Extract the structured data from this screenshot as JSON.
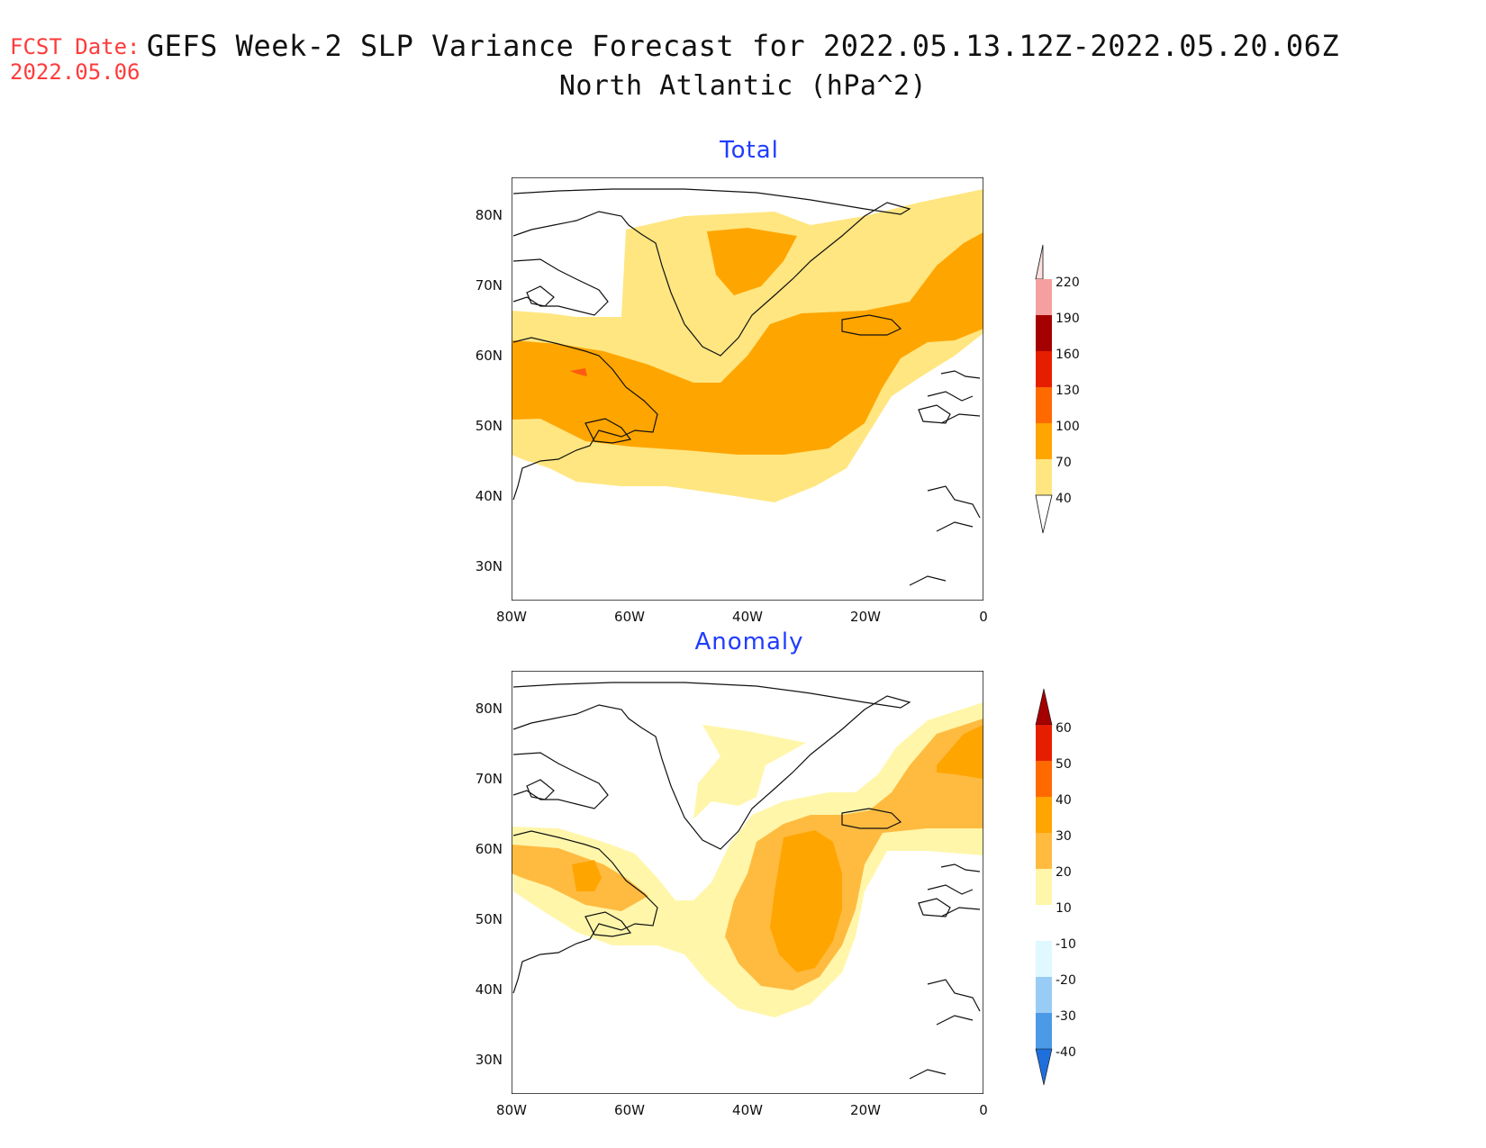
{
  "forecast_date": {
    "label": "FCST Date:",
    "value": "2022.05.06"
  },
  "title": "GEFS Week-2 SLP Variance Forecast for 2022.05.13.12Z-2022.05.20.06Z",
  "subtitle": "North Atlantic (hPa^2)",
  "axes": {
    "lat_ticks": [
      "80N",
      "70N",
      "60N",
      "50N",
      "40N",
      "30N"
    ],
    "lon_ticks": [
      "80W",
      "60W",
      "40W",
      "20W",
      "0"
    ]
  },
  "panels": [
    {
      "title": "Total",
      "colorbar": {
        "labels": [
          "40",
          "70",
          "100",
          "130",
          "160",
          "190",
          "220"
        ],
        "colors": [
          "#ffe680",
          "#ffa500",
          "#ff6a00",
          "#e61e00",
          "#a50000",
          "#f5a0a0",
          "#ffe0e0"
        ]
      }
    },
    {
      "title": "Anomaly",
      "colorbar": {
        "labels": [
          "60",
          "50",
          "40",
          "30",
          "20",
          "10",
          "-10",
          "-20",
          "-30",
          "-40"
        ],
        "colors": [
          "#a50000",
          "#e61e00",
          "#ff6a00",
          "#ffa500",
          "#ffbb40",
          "#fff6aa",
          "#ffffff",
          "#e0f8ff",
          "#98ccf5",
          "#4a9ae6",
          "#1e6fdc"
        ]
      }
    }
  ]
}
